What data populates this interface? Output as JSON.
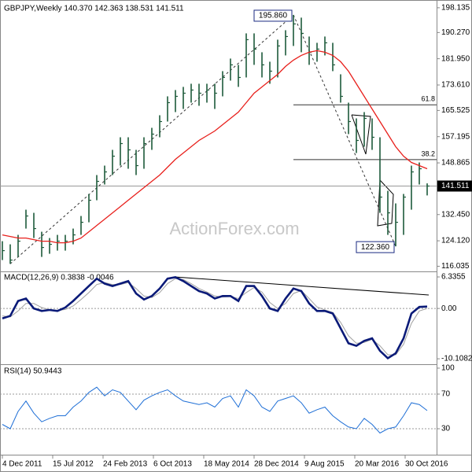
{
  "chart_data": [
    {
      "type": "ohlc",
      "title": "GBPJPY,Weekly  140.370 142.363 138.531 141.511",
      "ylim": [
        114.4,
        200.6
      ],
      "yticks": [
        198.135,
        {
          "value": 190.27,
          "label": "190.270"
        },
        {
          "value": 181.95,
          "label": "181.950"
        },
        {
          "value": 173.61,
          "label": "173.610"
        },
        165.525,
        157.195,
        148.865,
        {
          "value": 132.45,
          "label": "132.450"
        },
        {
          "value": 124.12,
          "label": "124.120"
        },
        116.035
      ],
      "last_price": 141.511,
      "color": "#1d5a3a",
      "high": [
        124,
        123,
        126,
        134,
        133,
        127,
        125,
        126,
        126,
        128,
        132,
        139,
        145,
        148,
        153,
        157,
        157,
        153,
        157,
        160,
        164,
        170,
        172,
        173,
        174,
        174,
        174,
        174,
        178,
        182,
        180,
        190,
        190,
        184,
        181,
        188,
        191,
        195.86,
        195,
        189,
        187,
        189,
        187,
        177,
        168,
        163,
        165,
        163,
        157,
        140,
        136,
        139,
        148,
        149,
        142.363
      ],
      "low": [
        118,
        116.8,
        119,
        128,
        125,
        119,
        120,
        121,
        121,
        123,
        126,
        130,
        137,
        142,
        145,
        148,
        147,
        145,
        147,
        153,
        157,
        162,
        165,
        166,
        168,
        167,
        168,
        166,
        170,
        175,
        173,
        176,
        180,
        176,
        174,
        176,
        183,
        186,
        184,
        180,
        181,
        183,
        178,
        168,
        158,
        152,
        154,
        153,
        133,
        126,
        122.36,
        126,
        134,
        142,
        138.531
      ],
      "close": [
        121,
        118,
        124,
        132,
        128,
        122,
        123,
        124,
        124,
        126,
        130,
        137,
        143,
        146,
        151,
        155,
        153,
        148,
        155,
        158,
        162,
        168,
        170,
        171,
        172,
        171,
        172,
        171,
        176,
        180,
        176,
        188,
        185,
        180,
        178,
        186,
        189,
        193,
        190,
        184,
        185,
        187,
        180,
        170,
        162,
        156,
        163,
        157,
        138,
        133,
        130,
        138,
        146,
        147,
        141.511
      ],
      "overlay": {
        "color": "#e8201c",
        "values": [
          126,
          125.5,
          125,
          125,
          124.5,
          124,
          124,
          123.5,
          123.5,
          124,
          125,
          127,
          129,
          131,
          133,
          135,
          137,
          139,
          141,
          143,
          145,
          147.5,
          150,
          152,
          154,
          156,
          157.5,
          159,
          161,
          163,
          165,
          168,
          171,
          173,
          175,
          177,
          179.5,
          181.5,
          183,
          184,
          184.5,
          184,
          183,
          181,
          178,
          174,
          170,
          166,
          162,
          158,
          154,
          151,
          149,
          148,
          147
        ]
      },
      "annotations": [
        {
          "value": 195.86,
          "label": "195.860"
        },
        {
          "value": 122.36,
          "label": "122.360"
        }
      ],
      "fib_levels": [
        {
          "label": "61.8",
          "value": 167.3
        },
        {
          "label": "38.2",
          "value": 149.9
        }
      ],
      "watermark": "ActionForex.com"
    },
    {
      "type": "macd",
      "title": "MACD(12,26,9) 0.3838 -0.0046",
      "ylim": [
        -11.2,
        7.13
      ],
      "yticks": [
        6.3355,
        {
          "value": 0,
          "label": "0.00"
        },
        -10.1082
      ],
      "series": [
        {
          "color": "#0a1a78",
          "values": [
            -2,
            -1.5,
            1.5,
            2,
            0,
            -0.5,
            -0.3,
            -0.5,
            0.2,
            1.5,
            3,
            4.5,
            6,
            5,
            4.5,
            5,
            5.5,
            3,
            1.8,
            2.5,
            4,
            6,
            6.3,
            5.5,
            4.5,
            3.5,
            3,
            2,
            2.5,
            2.5,
            1.5,
            4.5,
            4.5,
            2.5,
            0,
            -0.5,
            2,
            4,
            3.5,
            1,
            -0.5,
            -0.5,
            -1,
            -4,
            -7,
            -7.5,
            -6.5,
            -6,
            -8.5,
            -10,
            -9,
            -6,
            -1,
            0.3,
            0.3838
          ]
        },
        {
          "color": "#a0a0a0",
          "values": [
            -1.5,
            -1.7,
            -0.5,
            1,
            1,
            0.2,
            -0.3,
            -0.4,
            -0.2,
            0.5,
            1.8,
            3.2,
            4.8,
            5.2,
            4.8,
            4.8,
            5.2,
            4,
            2.5,
            2.2,
            3.2,
            5,
            6,
            5.8,
            5,
            4,
            3.3,
            2.5,
            2.3,
            2.4,
            2,
            3.2,
            4.2,
            3.3,
            1.2,
            0,
            1,
            3,
            3.6,
            2,
            0.3,
            -0.3,
            -0.8,
            -2.8,
            -5.5,
            -7,
            -6.8,
            -6.2,
            -7.5,
            -9.3,
            -9.3,
            -7.2,
            -3,
            -0.5,
            -0.0046
          ]
        }
      ]
    },
    {
      "type": "rsi",
      "title": "RSI(14) 50.9443",
      "ylim": [
        0,
        102.7
      ],
      "yticks": [
        100,
        70,
        30
      ],
      "color": "#1f6fd6",
      "values": [
        35,
        30,
        50,
        62,
        48,
        38,
        42,
        45,
        45,
        55,
        62,
        72,
        78,
        68,
        75,
        72,
        62,
        52,
        63,
        68,
        72,
        75,
        68,
        62,
        60,
        58,
        60,
        55,
        65,
        68,
        55,
        75,
        68,
        55,
        50,
        62,
        65,
        68,
        60,
        48,
        52,
        55,
        45,
        38,
        32,
        30,
        42,
        35,
        25,
        30,
        32,
        45,
        60,
        58,
        50.9443
      ],
      "xlim": [
        0,
        54
      ],
      "xticks": [
        {
          "value": 0,
          "label": "4 Dec 2011"
        },
        {
          "value": 6.4,
          "label": "15 Jul 2012"
        },
        {
          "value": 12.8,
          "label": "24 Feb 2013"
        },
        {
          "value": 19.2,
          "label": "6 Oct 2013"
        },
        {
          "value": 25.6,
          "label": "18 May 2014"
        },
        {
          "value": 32,
          "label": "28 Dec 2014"
        },
        {
          "value": 38.4,
          "label": "9 Aug 2015"
        },
        {
          "value": 44.8,
          "label": "20 Mar 2016"
        },
        {
          "value": 51.2,
          "label": "30 Oct 2016"
        }
      ]
    }
  ]
}
